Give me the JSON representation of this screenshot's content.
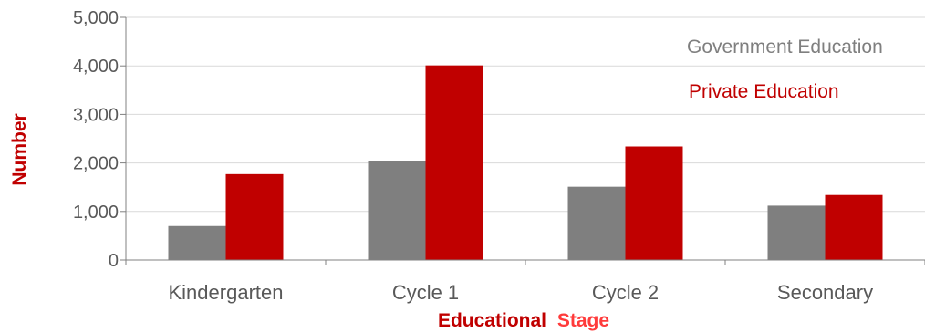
{
  "chart_data": {
    "type": "bar",
    "categories": [
      "Kindergarten",
      "Cycle 1",
      "Cycle 2",
      "Secondary"
    ],
    "series": [
      {
        "name": "Government Education",
        "values": [
          700,
          2040,
          1510,
          1120
        ],
        "color": "#7f7f7f"
      },
      {
        "name": "Private Education",
        "values": [
          1770,
          4010,
          2340,
          1340
        ],
        "color": "#c00000"
      }
    ],
    "yticks": [
      "0",
      "1,000",
      "2,000",
      "3,000",
      "4,000",
      "5,000"
    ],
    "ylim": [
      0,
      5000
    ],
    "grid": true,
    "legend": "top-right",
    "ylabel": "Number",
    "xlabel": {
      "part1": "Educational",
      "part2": "Stage"
    },
    "colors": {
      "xlabel_part1": "#c00000",
      "xlabel_part2": "#ff3b3b",
      "ylabel": "#c00000"
    }
  }
}
